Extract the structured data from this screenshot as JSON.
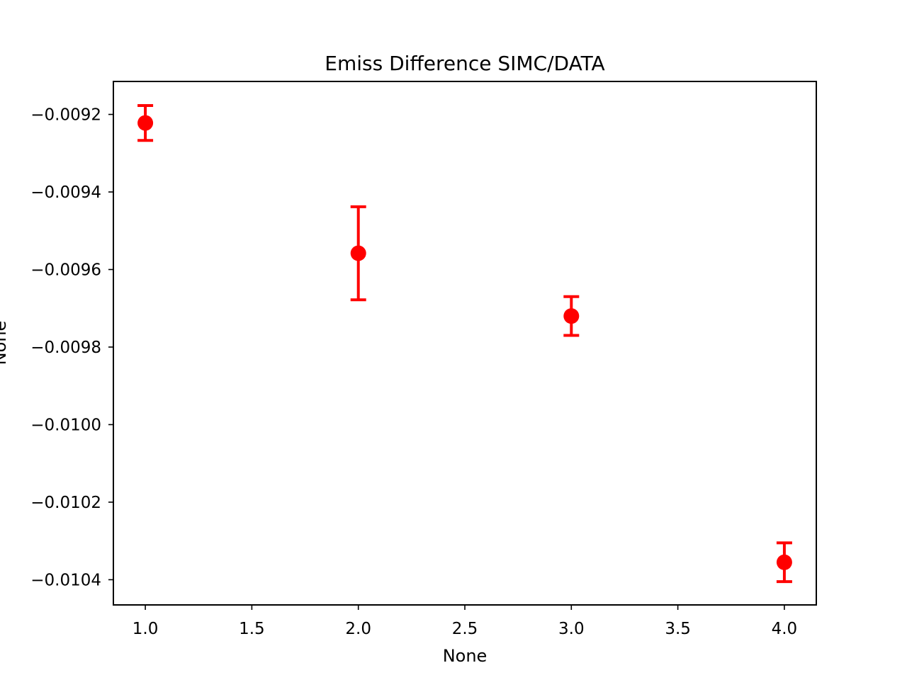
{
  "chart_data": {
    "type": "scatter",
    "title": "Emiss Difference SIMC/DATA",
    "xlabel": "None",
    "ylabel": "None",
    "xlim": [
      0.85,
      4.15
    ],
    "ylim": [
      -0.010465,
      -0.009115
    ],
    "xticks": [
      1.0,
      1.5,
      2.0,
      2.5,
      3.0,
      3.5,
      4.0
    ],
    "xtick_labels": [
      "1.0",
      "1.5",
      "2.0",
      "2.5",
      "3.0",
      "3.5",
      "4.0"
    ],
    "yticks": [
      -0.0092,
      -0.0094,
      -0.0096,
      -0.0098,
      -0.01,
      -0.0102,
      -0.0104
    ],
    "ytick_labels": [
      "−0.0092",
      "−0.0094",
      "−0.0096",
      "−0.0098",
      "−0.0100",
      "−0.0102",
      "−0.0104"
    ],
    "grid": false,
    "color": "#ff0000",
    "points": [
      {
        "x": 1.0,
        "y": -0.009222,
        "yerr": 4.5e-05
      },
      {
        "x": 2.0,
        "y": -0.009558,
        "yerr": 0.00012
      },
      {
        "x": 3.0,
        "y": -0.00972,
        "yerr": 5e-05
      },
      {
        "x": 4.0,
        "y": -0.010355,
        "yerr": 5e-05
      }
    ]
  }
}
